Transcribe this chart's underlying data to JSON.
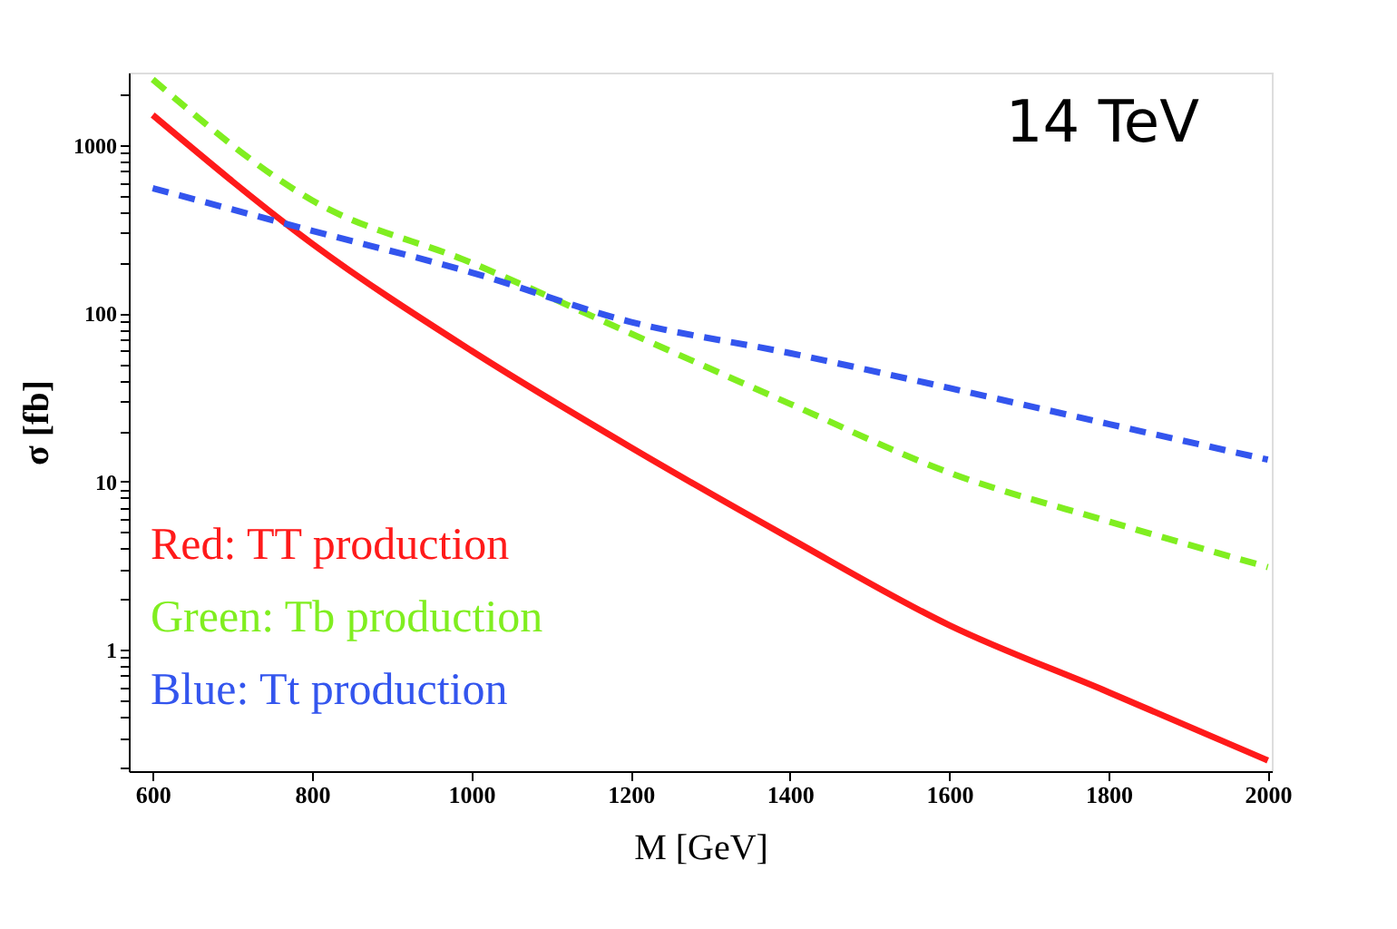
{
  "chart_data": {
    "type": "line",
    "xlabel": "M [GeV]",
    "ylabel": "σ [fb]",
    "log": "y",
    "grid": false,
    "legend": "bottom left",
    "annotations": [
      "14 TeV"
    ],
    "x": [
      600,
      800,
      1000,
      1200,
      1400,
      1600,
      1800,
      2000
    ],
    "xlim": [
      570,
      2005
    ],
    "xticks": [
      600,
      800,
      1000,
      1200,
      1400,
      1600,
      1800,
      2000
    ],
    "ylim": [
      0.19,
      2700
    ],
    "yticks": [
      {
        "value": 0.2,
        "label": null
      },
      {
        "value": 0.3,
        "label": null
      },
      {
        "value": 0.4,
        "label": null
      },
      {
        "value": 0.5,
        "label": null
      },
      {
        "value": 0.6,
        "label": null
      },
      {
        "value": 0.7,
        "label": null
      },
      {
        "value": 0.8,
        "label": null
      },
      {
        "value": 0.9,
        "label": null
      },
      1,
      {
        "value": 2,
        "label": null
      },
      {
        "value": 3,
        "label": null
      },
      {
        "value": 4,
        "label": null
      },
      {
        "value": 5,
        "label": null
      },
      {
        "value": 6,
        "label": null
      },
      {
        "value": 7,
        "label": null
      },
      {
        "value": 8,
        "label": null
      },
      {
        "value": 9,
        "label": null
      },
      10,
      {
        "value": 20,
        "label": null
      },
      {
        "value": 30,
        "label": null
      },
      {
        "value": 40,
        "label": null
      },
      {
        "value": 50,
        "label": null
      },
      {
        "value": 60,
        "label": null
      },
      {
        "value": 70,
        "label": null
      },
      {
        "value": 80,
        "label": null
      },
      {
        "value": 90,
        "label": null
      },
      100,
      {
        "value": 200,
        "label": null
      },
      {
        "value": 300,
        "label": null
      },
      {
        "value": 400,
        "label": null
      },
      {
        "value": 500,
        "label": null
      },
      {
        "value": 600,
        "label": null
      },
      {
        "value": 700,
        "label": null
      },
      {
        "value": 800,
        "label": null
      },
      {
        "value": 900,
        "label": null
      },
      1000,
      {
        "value": 2000,
        "label": null
      }
    ],
    "series": [
      {
        "name": "Red: TT production",
        "color": "#ff1a1a",
        "line_style": "solid",
        "values": [
          1510,
          260,
          60,
          16,
          4.6,
          1.4,
          0.56,
          0.22
        ]
      },
      {
        "name": "Green: Tb production",
        "color": "#80ee20",
        "line_style": "dashed",
        "values": [
          2460,
          470,
          200,
          76,
          29,
          11.3,
          5.8,
          3.1
        ]
      },
      {
        "name": "Blue: Tt production",
        "color": "#3355ee",
        "line_style": "dashed",
        "values": [
          555,
          310,
          175,
          89,
          58,
          36,
          22,
          13.5
        ]
      }
    ]
  }
}
